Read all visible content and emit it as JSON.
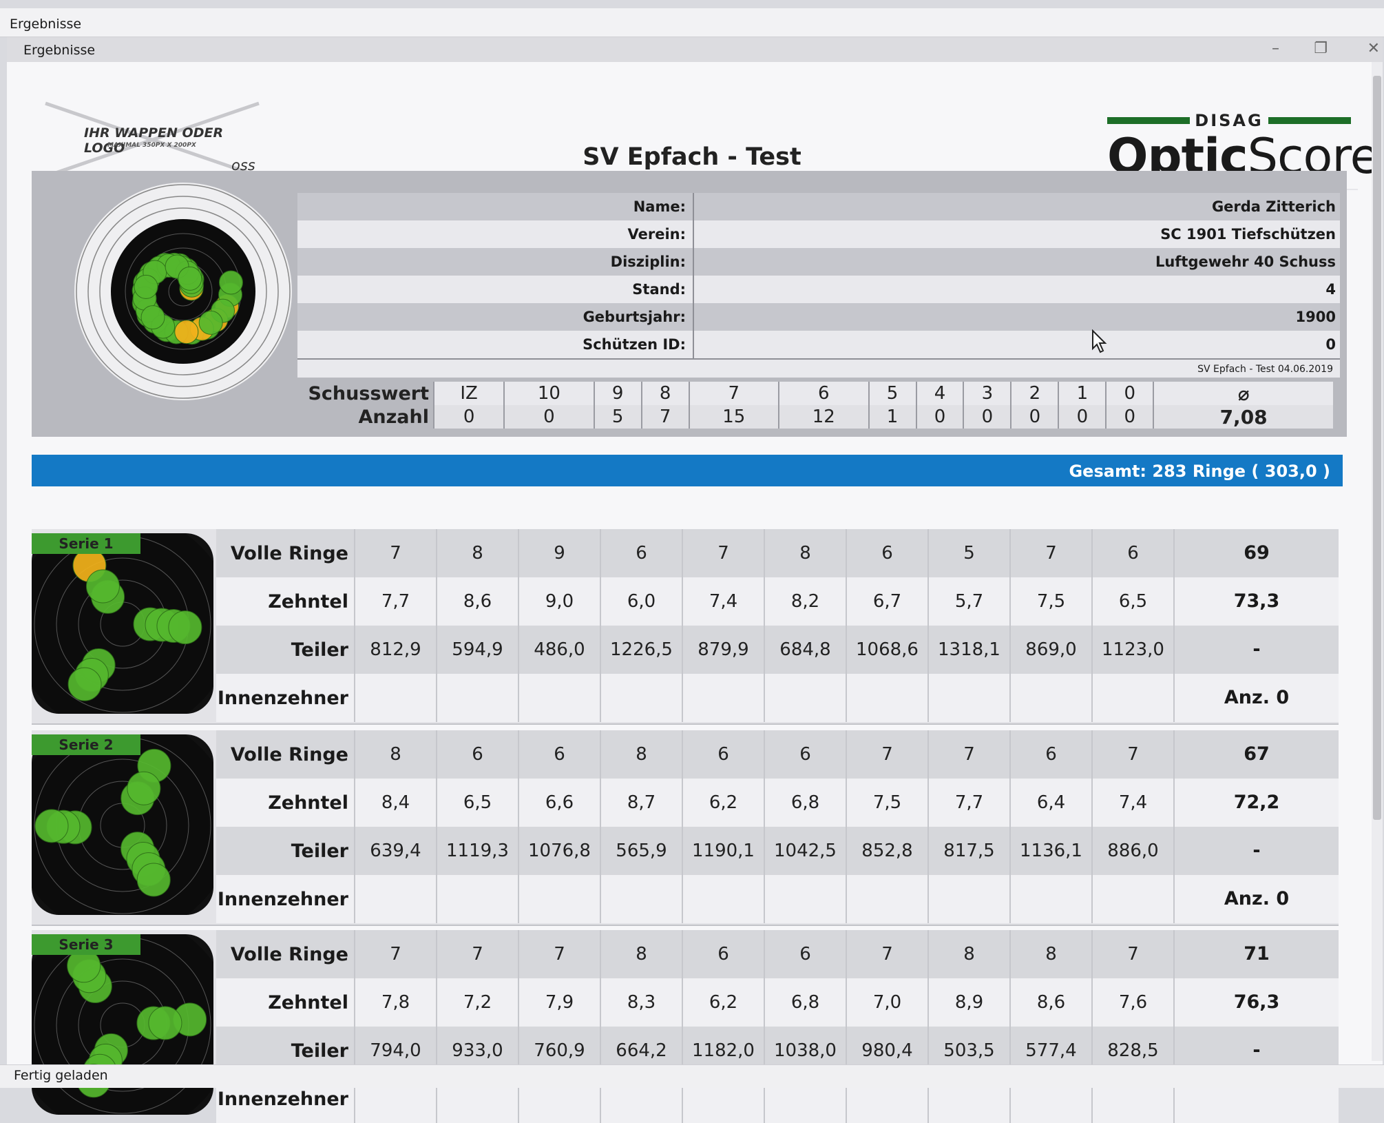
{
  "os_title": "Ergebnisse",
  "window": {
    "title": "Ergebnisse",
    "minimize": "–",
    "maximize": "❐",
    "close": "✕"
  },
  "logo": {
    "title": "IHR WAPPEN ODER LOGO",
    "subtitle": "MAXIMAL 350PX X 200PX",
    "tag": "oss"
  },
  "brand": {
    "top": "DISAG",
    "name_bold": "Optic",
    "name_rest": "Score"
  },
  "page_title": "SV Epfach - Test",
  "shooter": [
    {
      "label": "Name:",
      "value": "Gerda Zitterich"
    },
    {
      "label": "Verein:",
      "value": "SC 1901 Tiefschützen"
    },
    {
      "label": "Disziplin:",
      "value": "Luftgewehr 40 Schuss"
    },
    {
      "label": "Stand:",
      "value": "4"
    },
    {
      "label": "Geburtsjahr:",
      "value": "1900"
    },
    {
      "label": "Schützen ID:",
      "value": "0"
    }
  ],
  "footer_note": "SV Epfach - Test 04.06.2019",
  "distribution": {
    "header_label": "Schusswert",
    "count_label": "Anzahl",
    "values": [
      "IZ",
      "10",
      "9",
      "8",
      "7",
      "6",
      "5",
      "4",
      "3",
      "2",
      "1",
      "0",
      "⌀"
    ],
    "counts": [
      "0",
      "0",
      "5",
      "7",
      "15",
      "12",
      "1",
      "0",
      "0",
      "0",
      "0",
      "0",
      "7,08"
    ]
  },
  "total": "Gesamt: 283 Ringe ( 303,0 )",
  "row_labels": {
    "full": "Volle Ringe",
    "tenths": "Zehntel",
    "divider": "Teiler",
    "inner": "Innenzehner"
  },
  "series": [
    {
      "name": "Serie 1",
      "full": [
        "7",
        "8",
        "9",
        "6",
        "7",
        "8",
        "6",
        "5",
        "7",
        "6"
      ],
      "full_sum": "69",
      "tenths": [
        "7,7",
        "8,6",
        "9,0",
        "6,0",
        "7,4",
        "8,2",
        "6,7",
        "5,7",
        "7,5",
        "6,5"
      ],
      "tenths_sum": "73,3",
      "divider": [
        "812,9",
        "594,9",
        "486,0",
        "1226,5",
        "879,9",
        "684,8",
        "1068,6",
        "1318,1",
        "869,0",
        "1123,0"
      ],
      "divider_sum": "-",
      "inner_sum": "Anz. 0"
    },
    {
      "name": "Serie 2",
      "full": [
        "8",
        "6",
        "6",
        "8",
        "6",
        "6",
        "7",
        "7",
        "6",
        "7"
      ],
      "full_sum": "67",
      "tenths": [
        "8,4",
        "6,5",
        "6,6",
        "8,7",
        "6,2",
        "6,8",
        "7,5",
        "7,7",
        "6,4",
        "7,4"
      ],
      "tenths_sum": "72,2",
      "divider": [
        "639,4",
        "1119,3",
        "1076,8",
        "565,9",
        "1190,1",
        "1042,5",
        "852,8",
        "817,5",
        "1136,1",
        "886,0"
      ],
      "divider_sum": "-",
      "inner_sum": "Anz. 0"
    },
    {
      "name": "Serie 3",
      "full": [
        "7",
        "7",
        "7",
        "8",
        "6",
        "6",
        "7",
        "8",
        "8",
        "7"
      ],
      "full_sum": "71",
      "tenths": [
        "7,8",
        "7,2",
        "7,9",
        "8,3",
        "6,2",
        "6,8",
        "7,0",
        "8,9",
        "8,6",
        "7,6"
      ],
      "tenths_sum": "76,3",
      "divider": [
        "794,0",
        "933,0",
        "760,9",
        "664,2",
        "1182,0",
        "1038,0",
        "980,4",
        "503,5",
        "577,4",
        "828,5"
      ],
      "divider_sum": "-",
      "inner_sum": ""
    }
  ],
  "status": "Fertig geladen",
  "colors": {
    "accent_blue": "#1479c5",
    "series_green": "#3d9a2f",
    "shot_green": "#55b82e",
    "shot_yellow": "#f2b21b",
    "brand_green": "#1d6e28"
  }
}
